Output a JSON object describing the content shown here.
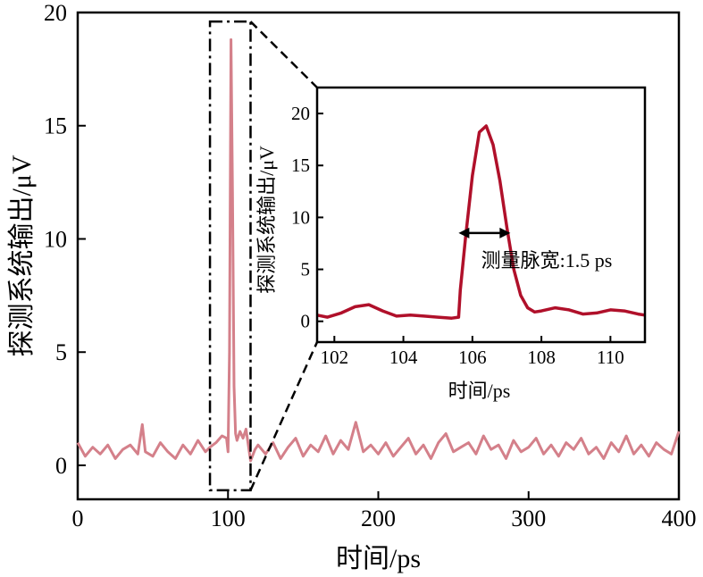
{
  "chart_data": [
    {
      "type": "line",
      "panel": "main",
      "xlabel": "时间/ps",
      "ylabel": "探测系统输出/μV",
      "xlim": [
        0,
        400
      ],
      "ylim": [
        -1.5,
        20
      ],
      "xticks": [
        0,
        100,
        200,
        300,
        400
      ],
      "yticks": [
        0,
        5,
        10,
        15,
        20
      ],
      "grid": false,
      "color": "#d4808a",
      "series": [
        {
          "x": [
            0,
            5,
            10,
            15,
            20,
            25,
            30,
            35,
            40,
            43,
            45,
            50,
            55,
            60,
            65,
            70,
            75,
            80,
            85,
            88,
            92,
            96,
            99,
            100,
            101,
            102,
            103,
            104,
            105,
            106,
            107,
            108,
            110,
            112,
            115,
            118,
            120,
            125,
            130,
            135,
            140,
            145,
            150,
            155,
            160,
            165,
            170,
            175,
            180,
            185,
            190,
            195,
            200,
            205,
            210,
            215,
            220,
            225,
            230,
            235,
            240,
            245,
            250,
            255,
            260,
            265,
            270,
            275,
            280,
            285,
            290,
            295,
            300,
            305,
            310,
            315,
            320,
            325,
            330,
            335,
            340,
            345,
            350,
            355,
            360,
            365,
            370,
            375,
            380,
            385,
            390,
            395,
            400
          ],
          "y": [
            1.0,
            0.4,
            0.8,
            0.5,
            0.9,
            0.3,
            0.7,
            0.9,
            0.5,
            1.8,
            0.6,
            0.4,
            1.0,
            0.6,
            0.3,
            0.9,
            0.5,
            1.1,
            0.6,
            0.8,
            1.0,
            1.3,
            1.2,
            0.6,
            5.0,
            18.8,
            12.0,
            3.5,
            1.4,
            1.1,
            1.3,
            1.5,
            1.2,
            1.6,
            0.2,
            0.7,
            0.9,
            0.5,
            1.0,
            0.3,
            0.8,
            1.2,
            0.4,
            0.9,
            0.6,
            1.3,
            0.5,
            1.1,
            0.7,
            1.9,
            0.6,
            0.9,
            0.5,
            1.0,
            0.4,
            0.8,
            1.2,
            0.5,
            0.9,
            0.3,
            1.0,
            1.4,
            0.6,
            0.8,
            1.0,
            0.5,
            1.3,
            0.7,
            0.9,
            0.3,
            1.1,
            0.6,
            0.8,
            1.2,
            0.5,
            0.9,
            0.4,
            1.0,
            0.7,
            1.2,
            0.5,
            0.8,
            0.3,
            1.0,
            0.6,
            1.3,
            0.5,
            0.9,
            0.4,
            1.0,
            0.7,
            0.5,
            1.5
          ]
        }
      ]
    },
    {
      "type": "line",
      "panel": "inset",
      "xlabel": "时间/ps",
      "ylabel": "探测系统输出/μV",
      "xlim": [
        101.5,
        111
      ],
      "ylim": [
        -2,
        22.5
      ],
      "xticks": [
        102,
        104,
        106,
        108,
        110
      ],
      "yticks": [
        0,
        5,
        10,
        15,
        20
      ],
      "grid": false,
      "color": "#b0102a",
      "series": [
        {
          "x": [
            101.5,
            101.8,
            102.2,
            102.6,
            103.0,
            103.4,
            103.8,
            104.2,
            104.6,
            105.0,
            105.4,
            105.6,
            105.65,
            105.8,
            106.0,
            106.2,
            106.4,
            106.6,
            106.8,
            107.0,
            107.2,
            107.4,
            107.6,
            107.8,
            108.0,
            108.4,
            108.8,
            109.2,
            109.6,
            110.0,
            110.4,
            110.8,
            111.0
          ],
          "y": [
            0.6,
            0.4,
            0.8,
            1.4,
            1.6,
            1.0,
            0.5,
            0.6,
            0.5,
            0.4,
            0.3,
            0.4,
            3.0,
            8.0,
            14.0,
            18.2,
            18.8,
            17.0,
            13.5,
            9.0,
            5.0,
            2.5,
            1.3,
            0.9,
            1.0,
            1.3,
            1.1,
            0.7,
            0.8,
            1.1,
            1.0,
            0.7,
            0.6
          ]
        }
      ]
    }
  ],
  "annotations": {
    "pulse_width_text": "测量脉宽:1.5 ps",
    "arrow_x_start": 105.6,
    "arrow_x_end": 107.1,
    "arrow_y": 8.5,
    "zoom_region_x": [
      88,
      115
    ],
    "zoom_region_y": [
      -1.1,
      19.6
    ]
  }
}
